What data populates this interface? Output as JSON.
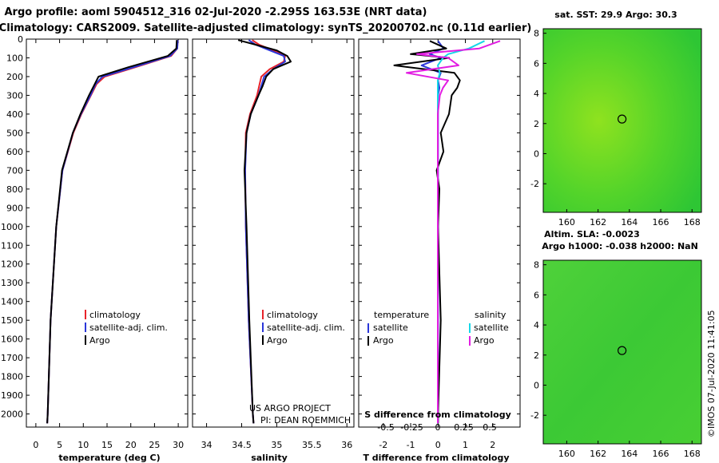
{
  "header": {
    "line1": "Argo profile: aoml 5904512_316 02-Jul-2020 -2.295S 163.53E (NRT data)",
    "line2": "Climatology: CARS2009. Satellite-adjusted climatology: synTS_20200702.nc (0.11d earlier)"
  },
  "colors": {
    "climatology": "#e8232a",
    "satellite": "#2a36d9",
    "argo": "#000000",
    "sal_sat": "#16d8e8",
    "sal_argo": "#e21de2",
    "map_green": "#3fcf2e"
  },
  "depth_axis": {
    "ticks": [
      0,
      100,
      200,
      300,
      400,
      500,
      600,
      700,
      800,
      900,
      1000,
      1100,
      1200,
      1300,
      1400,
      1500,
      1600,
      1700,
      1800,
      1900,
      2000
    ],
    "min": 0,
    "max": 2070
  },
  "chart_data": [
    {
      "type": "line",
      "id": "temperature",
      "xlabel": "temperature (deg C)",
      "xlim": [
        -2,
        32
      ],
      "xticks": [
        0,
        5,
        10,
        15,
        20,
        25,
        30
      ],
      "depth": [
        5,
        50,
        90,
        150,
        200,
        240,
        300,
        400,
        500,
        700,
        1000,
        1500,
        2000,
        2050
      ],
      "series": [
        {
          "name": "climatology",
          "color": "#e8232a",
          "values": [
            29.9,
            29.8,
            28.5,
            21.0,
            14.5,
            12.8,
            11.6,
            9.6,
            7.9,
            5.6,
            4.3,
            3.1,
            2.5,
            2.4
          ]
        },
        {
          "name": "satellite-adj. clim.",
          "color": "#2a36d9",
          "values": [
            29.9,
            29.8,
            28.3,
            20.6,
            14.0,
            12.6,
            11.5,
            9.5,
            7.8,
            5.6,
            4.3,
            3.1,
            2.5,
            2.4
          ]
        },
        {
          "name": "Argo",
          "color": "#000000",
          "values": [
            29.7,
            29.6,
            27.8,
            19.5,
            13.2,
            12.4,
            11.2,
            9.4,
            7.8,
            5.5,
            4.3,
            3.1,
            2.5,
            2.4
          ]
        }
      ],
      "legend": [
        "climatology",
        "satellite-adj. clim.",
        "Argo"
      ],
      "annotations": []
    },
    {
      "type": "line",
      "id": "salinity",
      "xlabel": "salinity",
      "xlim": [
        33.8,
        36.1
      ],
      "xticks": [
        34,
        34.5,
        35,
        35.5,
        36
      ],
      "depth": [
        5,
        30,
        60,
        90,
        120,
        160,
        200,
        250,
        300,
        400,
        500,
        700,
        1000,
        1500,
        2000,
        2050
      ],
      "series": [
        {
          "name": "climatology",
          "color": "#e8232a",
          "values": [
            34.65,
            34.75,
            34.95,
            35.12,
            35.1,
            34.9,
            34.78,
            34.75,
            34.72,
            34.62,
            34.56,
            34.55,
            34.56,
            34.6,
            34.66,
            34.67
          ]
        },
        {
          "name": "satellite-adj. clim.",
          "color": "#2a36d9",
          "values": [
            34.6,
            34.7,
            34.9,
            35.1,
            35.12,
            34.95,
            34.82,
            34.78,
            34.74,
            34.63,
            34.57,
            34.55,
            34.56,
            34.6,
            34.66,
            34.67
          ]
        },
        {
          "name": "Argo",
          "color": "#000000",
          "values": [
            34.45,
            34.7,
            35.0,
            35.15,
            35.2,
            34.95,
            34.85,
            34.8,
            34.74,
            34.63,
            34.57,
            34.54,
            34.57,
            34.61,
            34.66,
            34.67
          ]
        }
      ],
      "legend": [
        "climatology",
        "satellite-adj. clim.",
        "Argo"
      ],
      "annotations": [
        "US ARGO PROJECT",
        "PI: DEAN ROEMMICH"
      ]
    },
    {
      "type": "line",
      "id": "difference",
      "xlabel": "T difference from climatology",
      "xlabel2": "S difference from climatology",
      "xlim": [
        -2.9,
        3.0
      ],
      "xticks": [
        -2,
        -1,
        0,
        1,
        2
      ],
      "xticks2_labels": [
        "-0.5",
        "-0.25",
        "0",
        "0.25",
        "0.5"
      ],
      "xticks2_values": [
        -0.5,
        -0.25,
        0,
        0.25,
        0.5
      ],
      "depth": [
        10,
        50,
        80,
        100,
        140,
        180,
        220,
        260,
        300,
        400,
        500,
        600,
        700,
        800,
        1000,
        1500,
        2000,
        2050
      ],
      "series": [
        {
          "name": "temperature satellite",
          "color": "#2a36d9",
          "values": [
            0.0,
            0.2,
            -0.3,
            0.1,
            -0.6,
            0.1,
            0.0,
            0.05,
            0.0,
            0.0,
            0.0,
            0.0,
            0.0,
            0.0,
            0.0,
            0.0,
            0.0,
            0.0
          ]
        },
        {
          "name": "temperature Argo",
          "color": "#000000",
          "values": [
            -0.3,
            0.3,
            -1.0,
            0.4,
            -1.6,
            0.6,
            0.8,
            0.7,
            0.5,
            0.4,
            0.1,
            0.2,
            -0.05,
            0.05,
            0.0,
            0.1,
            0.0,
            0.0
          ]
        },
        {
          "name": "salinity satellite",
          "color": "#16d8e8",
          "values": [
            0.45,
            0.3,
            0.1,
            0.05,
            0.0,
            0.02,
            0.0,
            0.0,
            0.0,
            0.0,
            0.0,
            0.0,
            0.0,
            0.0,
            0.0,
            0.0,
            0.0,
            0.0
          ]
        },
        {
          "name": "salinity Argo",
          "color": "#e21de2",
          "values": [
            0.6,
            0.4,
            -0.2,
            0.1,
            0.2,
            -0.3,
            0.1,
            0.05,
            0.02,
            0.0,
            0.0,
            0.0,
            0.0,
            0.0,
            0.0,
            0.0,
            0.0,
            0.0
          ]
        }
      ],
      "legend_left_title": "temperature",
      "legend_right_title": "salinity",
      "legend_left": [
        "satellite",
        "Argo"
      ],
      "legend_right": [
        "satellite",
        "Argo"
      ]
    }
  ],
  "maps": [
    {
      "title": "sat. SST: 29.9 Argo: 30.3",
      "xticks": [
        160,
        162,
        164,
        166,
        168
      ],
      "yticks": [
        -2,
        0,
        2,
        4,
        6,
        8
      ],
      "lon_range": [
        158.5,
        168.6
      ],
      "lat_range": [
        -3.9,
        8.3
      ],
      "marker": {
        "lon": 163.53,
        "lat": 2.3
      }
    },
    {
      "title": "Altim. SLA: -0.0023",
      "title2": "Argo h1000: -0.038 h2000: NaN",
      "xticks": [
        160,
        162,
        164,
        166,
        168
      ],
      "yticks": [
        -2,
        0,
        2,
        4,
        6,
        8
      ],
      "lon_range": [
        158.5,
        168.6
      ],
      "lat_range": [
        -3.9,
        8.3
      ],
      "marker": {
        "lon": 163.53,
        "lat": 2.3
      }
    }
  ],
  "credit": "©IMOS 07-Jul-2020 11:41:05"
}
